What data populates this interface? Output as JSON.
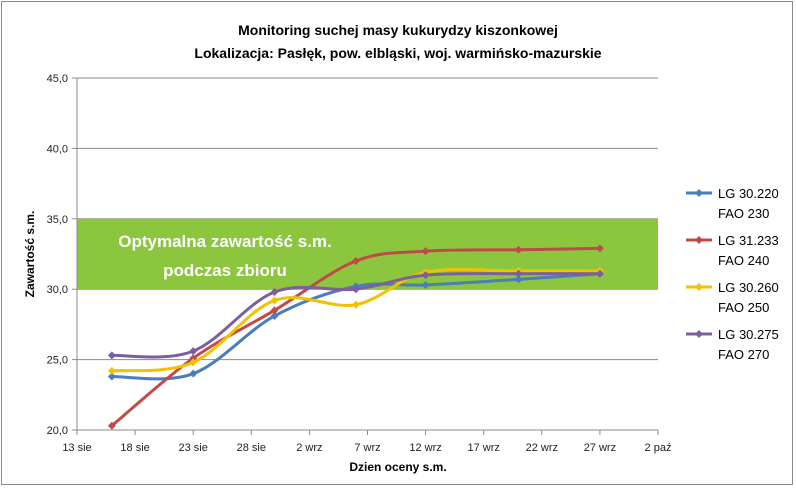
{
  "chart_data": {
    "type": "line",
    "title": "Monitoring suchej masy kukurydzy kiszonkowej",
    "subtitle": "Lokalizacja: Pasłęk, pow. elbląski, woj. warmińsko-mazurskie",
    "xlabel": "Dzien oceny s.m.",
    "ylabel": "Zawartość s.m.",
    "x_ticks": [
      "13 sie",
      "18 sie",
      "23 sie",
      "28 sie",
      "2 wrz",
      "7 wrz",
      "12 wrz",
      "17 wrz",
      "22 wrz",
      "27 wrz",
      "2 paź"
    ],
    "x_tick_days": [
      0,
      5,
      10,
      15,
      20,
      25,
      30,
      35,
      40,
      45,
      50
    ],
    "xlim_days": [
      0,
      50
    ],
    "y_ticks": [
      "20,0",
      "25,0",
      "30,0",
      "35,0",
      "40,0",
      "45,0"
    ],
    "ylim": [
      20,
      45
    ],
    "grid": true,
    "legend_position": "right",
    "band": {
      "label_lines": [
        "Optymalna zawartość s.m.",
        "podczas zbioru"
      ],
      "from": 30,
      "to": 35,
      "color": "#8cc63f"
    },
    "series": [
      {
        "name_lines": [
          "LG 30.220",
          "FAO 230"
        ],
        "color": "#4a7ebb",
        "x": [
          "16 sie",
          "23 sie",
          "30 sie",
          "6 wrz",
          "12 wrz",
          "20 wrz",
          "27 wrz"
        ],
        "x_days": [
          3,
          10,
          17,
          24,
          30,
          38,
          45
        ],
        "values": [
          23.8,
          24.0,
          28.1,
          30.2,
          30.3,
          30.7,
          31.1
        ]
      },
      {
        "name_lines": [
          "LG 31.233",
          "FAO 240"
        ],
        "color": "#be4b48",
        "x": [
          "16 sie",
          "23 sie",
          "30 sie",
          "6 wrz",
          "12 wrz",
          "20 wrz",
          "27 wrz"
        ],
        "x_days": [
          3,
          10,
          17,
          24,
          30,
          38,
          45
        ],
        "values": [
          20.3,
          25.1,
          28.5,
          32.0,
          32.7,
          32.8,
          32.9
        ]
      },
      {
        "name_lines": [
          "LG 30.260",
          "FAO 250"
        ],
        "color": "#f2c200",
        "x": [
          "16 sie",
          "23 sie",
          "30 sie",
          "6 wrz",
          "12 wrz",
          "20 wrz",
          "27 wrz"
        ],
        "x_days": [
          3,
          10,
          17,
          24,
          30,
          38,
          45
        ],
        "values": [
          24.2,
          24.8,
          29.2,
          28.9,
          31.2,
          31.3,
          31.3
        ]
      },
      {
        "name_lines": [
          "LG 30.275",
          "FAO 270"
        ],
        "color": "#7d5fa0",
        "x": [
          "16 sie",
          "23 sie",
          "30 sie",
          "6 wrz",
          "12 wrz",
          "20 wrz",
          "27 wrz"
        ],
        "x_days": [
          3,
          10,
          17,
          24,
          30,
          38,
          45
        ],
        "values": [
          25.3,
          25.6,
          29.8,
          30.0,
          31.0,
          31.1,
          31.1
        ]
      }
    ]
  }
}
